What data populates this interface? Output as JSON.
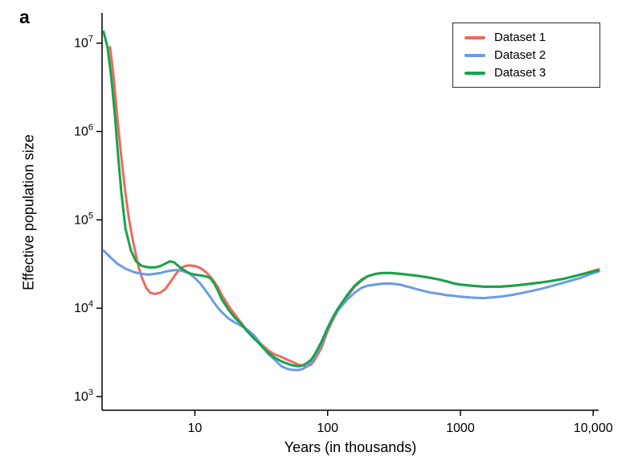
{
  "figure": {
    "panel_label": "a"
  },
  "chart_data": {
    "type": "line",
    "title": "",
    "xlabel": "Years (in thousands)",
    "ylabel": "Effective population size",
    "x_scale": "log",
    "y_scale": "log",
    "xlim": [
      2,
      11000
    ],
    "ylim": [
      700,
      22000000
    ],
    "grid": false,
    "legend_position": "top-right",
    "axis_color": "#000000",
    "x_ticks": [
      {
        "value": 10,
        "label": "10"
      },
      {
        "value": 100,
        "label": "100"
      },
      {
        "value": 1000,
        "label": "1000"
      },
      {
        "value": 10000,
        "label": "10,000"
      }
    ],
    "y_tick_exponents": [
      3,
      4,
      5,
      6,
      7
    ],
    "series": [
      {
        "name": "Dataset 1",
        "color": "#ed6a5e",
        "points": [
          [
            2.3,
            9000000.0
          ],
          [
            2.45,
            4000000.0
          ],
          [
            2.6,
            1500000.0
          ],
          [
            2.8,
            500000.0
          ],
          [
            3.0,
            200000.0
          ],
          [
            3.2,
            100000.0
          ],
          [
            3.4,
            60000.0
          ],
          [
            3.6,
            40000.0
          ],
          [
            3.8,
            28000.0
          ],
          [
            4.0,
            22000.0
          ],
          [
            4.3,
            17000.0
          ],
          [
            4.6,
            15000.0
          ],
          [
            5.0,
            14500.0
          ],
          [
            5.5,
            15000.0
          ],
          [
            6.0,
            16500.0
          ],
          [
            6.5,
            19500.0
          ],
          [
            7.0,
            23000.0
          ],
          [
            7.5,
            26500.0
          ],
          [
            8.0,
            29000.0
          ],
          [
            8.5,
            30000.0
          ],
          [
            9.0,
            30500.0
          ],
          [
            10,
            30000.0
          ],
          [
            11,
            28500.0
          ],
          [
            12,
            26000.0
          ],
          [
            13,
            23000.0
          ],
          [
            14,
            20000.0
          ],
          [
            15,
            17000.0
          ],
          [
            16,
            14000.0
          ],
          [
            18,
            10500.0
          ],
          [
            20,
            8500.0
          ],
          [
            22,
            7000.0
          ],
          [
            25,
            5500.0
          ],
          [
            28,
            4600.0
          ],
          [
            30,
            4200.0
          ],
          [
            33,
            3700.0
          ],
          [
            36,
            3300.0
          ],
          [
            40,
            3000.0
          ],
          [
            45,
            2800.0
          ],
          [
            50,
            2600.0
          ],
          [
            55,
            2450.0
          ],
          [
            60,
            2300.0
          ],
          [
            65,
            2250.0
          ],
          [
            70,
            2200.0
          ],
          [
            75,
            2300.0
          ],
          [
            80,
            2600.0
          ],
          [
            90,
            3600.0
          ],
          [
            100,
            5500.0
          ],
          [
            110,
            7500.0
          ],
          [
            120,
            9500.0
          ],
          [
            140,
            13500.0
          ],
          [
            160,
            17500.0
          ],
          [
            180,
            20500.0
          ],
          [
            200,
            23000.0
          ],
          [
            230,
            24500.0
          ],
          [
            260,
            25000.0
          ],
          [
            300,
            25000.0
          ],
          [
            350,
            24500.0
          ],
          [
            400,
            24000.0
          ],
          [
            500,
            23000.0
          ],
          [
            600,
            22000.0
          ],
          [
            700,
            21000.0
          ],
          [
            800,
            20000.0
          ],
          [
            900,
            19000.0
          ],
          [
            1000,
            18500.0
          ],
          [
            1200,
            18000.0
          ],
          [
            1500,
            17500.0
          ],
          [
            2000,
            17500.0
          ],
          [
            2500,
            18000.0
          ],
          [
            3000,
            18500.0
          ],
          [
            4000,
            19500.0
          ],
          [
            5000,
            20500.0
          ],
          [
            6000,
            21500.0
          ],
          [
            8000,
            24000.0
          ],
          [
            10000,
            26500.0
          ],
          [
            11000,
            27500.0
          ]
        ]
      },
      {
        "name": "Dataset 2",
        "color": "#6b9be6",
        "points": [
          [
            2.05,
            45000.0
          ],
          [
            2.3,
            38000.0
          ],
          [
            2.6,
            32000.0
          ],
          [
            3.0,
            28000.0
          ],
          [
            3.5,
            25500.0
          ],
          [
            4.0,
            24500.0
          ],
          [
            4.5,
            24000.0
          ],
          [
            5.0,
            24500.0
          ],
          [
            5.5,
            25000.0
          ],
          [
            6.0,
            26000.0
          ],
          [
            6.5,
            26500.0
          ],
          [
            7.0,
            27000.0
          ],
          [
            7.5,
            27000.0
          ],
          [
            8.0,
            26500.0
          ],
          [
            9.0,
            25000.0
          ],
          [
            10,
            22000.0
          ],
          [
            11,
            19000.0
          ],
          [
            12,
            16000.0
          ],
          [
            13,
            13500.0
          ],
          [
            14,
            11500.0
          ],
          [
            15,
            10000.0
          ],
          [
            16,
            9000.0
          ],
          [
            18,
            7600.0
          ],
          [
            20,
            6900.0
          ],
          [
            22,
            6400.0
          ],
          [
            25,
            5700.0
          ],
          [
            28,
            4900.0
          ],
          [
            30,
            4300.0
          ],
          [
            33,
            3500.0
          ],
          [
            36,
            3000.0
          ],
          [
            40,
            2600.0
          ],
          [
            45,
            2200.0
          ],
          [
            50,
            2050.0
          ],
          [
            55,
            2000.0
          ],
          [
            60,
            2000.0
          ],
          [
            65,
            2050.0
          ],
          [
            70,
            2200.0
          ],
          [
            75,
            2400.0
          ],
          [
            80,
            2800.0
          ],
          [
            90,
            4000.0
          ],
          [
            100,
            5800.0
          ],
          [
            110,
            7800.0
          ],
          [
            120,
            9500.0
          ],
          [
            140,
            12500.0
          ],
          [
            160,
            15000.0
          ],
          [
            180,
            17000.0
          ],
          [
            200,
            18000.0
          ],
          [
            230,
            18500.0
          ],
          [
            260,
            19000.0
          ],
          [
            300,
            19000.0
          ],
          [
            350,
            18500.0
          ],
          [
            400,
            17500.0
          ],
          [
            500,
            16000.0
          ],
          [
            600,
            15000.0
          ],
          [
            700,
            14500.0
          ],
          [
            800,
            14000.0
          ],
          [
            900,
            13800.0
          ],
          [
            1000,
            13500.0
          ],
          [
            1200,
            13200.0
          ],
          [
            1500,
            13000.0
          ],
          [
            2000,
            13500.0
          ],
          [
            2500,
            14200.0
          ],
          [
            3000,
            15000.0
          ],
          [
            4000,
            16500.0
          ],
          [
            5000,
            18000.0
          ],
          [
            6000,
            19500.0
          ],
          [
            8000,
            22000.0
          ],
          [
            10000,
            25000.0
          ],
          [
            11000,
            26000.0
          ]
        ]
      },
      {
        "name": "Dataset 3",
        "color": "#14a44a",
        "points": [
          [
            2.05,
            13500000.0
          ],
          [
            2.2,
            9000000.0
          ],
          [
            2.35,
            4000000.0
          ],
          [
            2.5,
            1500000.0
          ],
          [
            2.65,
            500000.0
          ],
          [
            2.8,
            200000.0
          ],
          [
            3.0,
            80000.0
          ],
          [
            3.3,
            45000.0
          ],
          [
            3.6,
            34000.0
          ],
          [
            4.0,
            30000.0
          ],
          [
            4.5,
            29000.0
          ],
          [
            5.0,
            29000.0
          ],
          [
            5.5,
            30000.0
          ],
          [
            6.0,
            32000.0
          ],
          [
            6.5,
            34000.0
          ],
          [
            7.0,
            33000.0
          ],
          [
            7.5,
            30000.0
          ],
          [
            8.0,
            28000.0
          ],
          [
            9.0,
            25000.0
          ],
          [
            10,
            24000.0
          ],
          [
            11,
            23500.0
          ],
          [
            12,
            23000.0
          ],
          [
            13,
            22000.0
          ],
          [
            14,
            19000.0
          ],
          [
            15,
            15500.0
          ],
          [
            16,
            12500.0
          ],
          [
            18,
            9500.0
          ],
          [
            20,
            7800.0
          ],
          [
            22,
            6800.0
          ],
          [
            25,
            5400.0
          ],
          [
            28,
            4500.0
          ],
          [
            30,
            4100.0
          ],
          [
            33,
            3500.0
          ],
          [
            36,
            3100.0
          ],
          [
            40,
            2750.0
          ],
          [
            45,
            2500.0
          ],
          [
            50,
            2350.0
          ],
          [
            55,
            2250.0
          ],
          [
            60,
            2200.0
          ],
          [
            65,
            2250.0
          ],
          [
            70,
            2400.0
          ],
          [
            75,
            2600.0
          ],
          [
            80,
            3000.0
          ],
          [
            90,
            4200.0
          ],
          [
            100,
            6000.0
          ],
          [
            110,
            8000.0
          ],
          [
            120,
            10000.0
          ],
          [
            140,
            14000.0
          ],
          [
            160,
            18000.0
          ],
          [
            180,
            21000.0
          ],
          [
            200,
            23000.0
          ],
          [
            230,
            24500.0
          ],
          [
            260,
            25000.0
          ],
          [
            300,
            25000.0
          ],
          [
            350,
            24500.0
          ],
          [
            400,
            24000.0
          ],
          [
            500,
            23000.0
          ],
          [
            600,
            22000.0
          ],
          [
            700,
            21000.0
          ],
          [
            800,
            20000.0
          ],
          [
            900,
            19000.0
          ],
          [
            1000,
            18500.0
          ],
          [
            1200,
            18000.0
          ],
          [
            1500,
            17500.0
          ],
          [
            2000,
            17500.0
          ],
          [
            2500,
            18000.0
          ],
          [
            3000,
            18500.0
          ],
          [
            4000,
            19500.0
          ],
          [
            5000,
            20500.0
          ],
          [
            6000,
            21500.0
          ],
          [
            8000,
            24000.0
          ],
          [
            10000,
            26000.0
          ],
          [
            11000,
            27000.0
          ]
        ]
      }
    ]
  }
}
